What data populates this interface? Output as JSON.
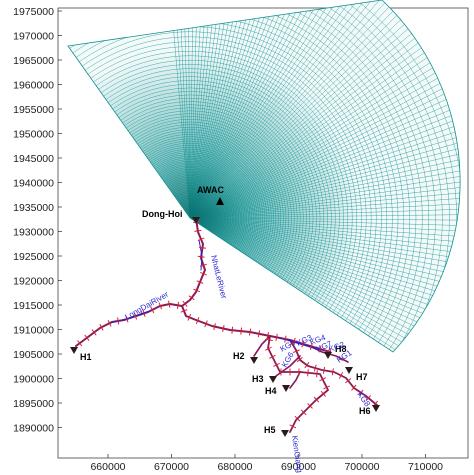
{
  "map": {
    "y_ticks": [
      "1975000",
      "1970000",
      "1965000",
      "1960000",
      "1955000",
      "1950000",
      "1945000",
      "1940000",
      "1935000",
      "1930000",
      "1925000",
      "1920000",
      "1915000",
      "1910000",
      "1905000",
      "1900000",
      "1895000",
      "1890000"
    ],
    "x_ticks": [
      "660000",
      "670000",
      "680000",
      "690000",
      "700000",
      "710000"
    ],
    "stations": [
      {
        "id": "H1",
        "label": "H1"
      },
      {
        "id": "H2",
        "label": "H2"
      },
      {
        "id": "H3",
        "label": "H3"
      },
      {
        "id": "H4",
        "label": "H4"
      },
      {
        "id": "H5",
        "label": "H5"
      },
      {
        "id": "H6",
        "label": "H6"
      },
      {
        "id": "H7",
        "label": "H7"
      },
      {
        "id": "H8",
        "label": "H8"
      }
    ],
    "awac_label": "AWAC",
    "city_label": "Dong-Hoi",
    "river_labels": {
      "long_dai": "LongDaiRiver",
      "nhat_le": "NhatLeRiver",
      "kien_giang": "KienGiang",
      "kg1": "KG1",
      "kg2": "KG2",
      "kg3": "KG3",
      "kg4": "KG4",
      "kg5": "KG5",
      "kg6": "KG6",
      "kg7": "KG7",
      "kg8": "KG8"
    },
    "colors": {
      "mesh": "#0e8f8f",
      "mesh_dense": "#0a6f6e",
      "river": "#8b1a5c",
      "river_channel": "#2222cc",
      "cross_section": "#e02020",
      "marker": "#2a1a1a"
    }
  }
}
